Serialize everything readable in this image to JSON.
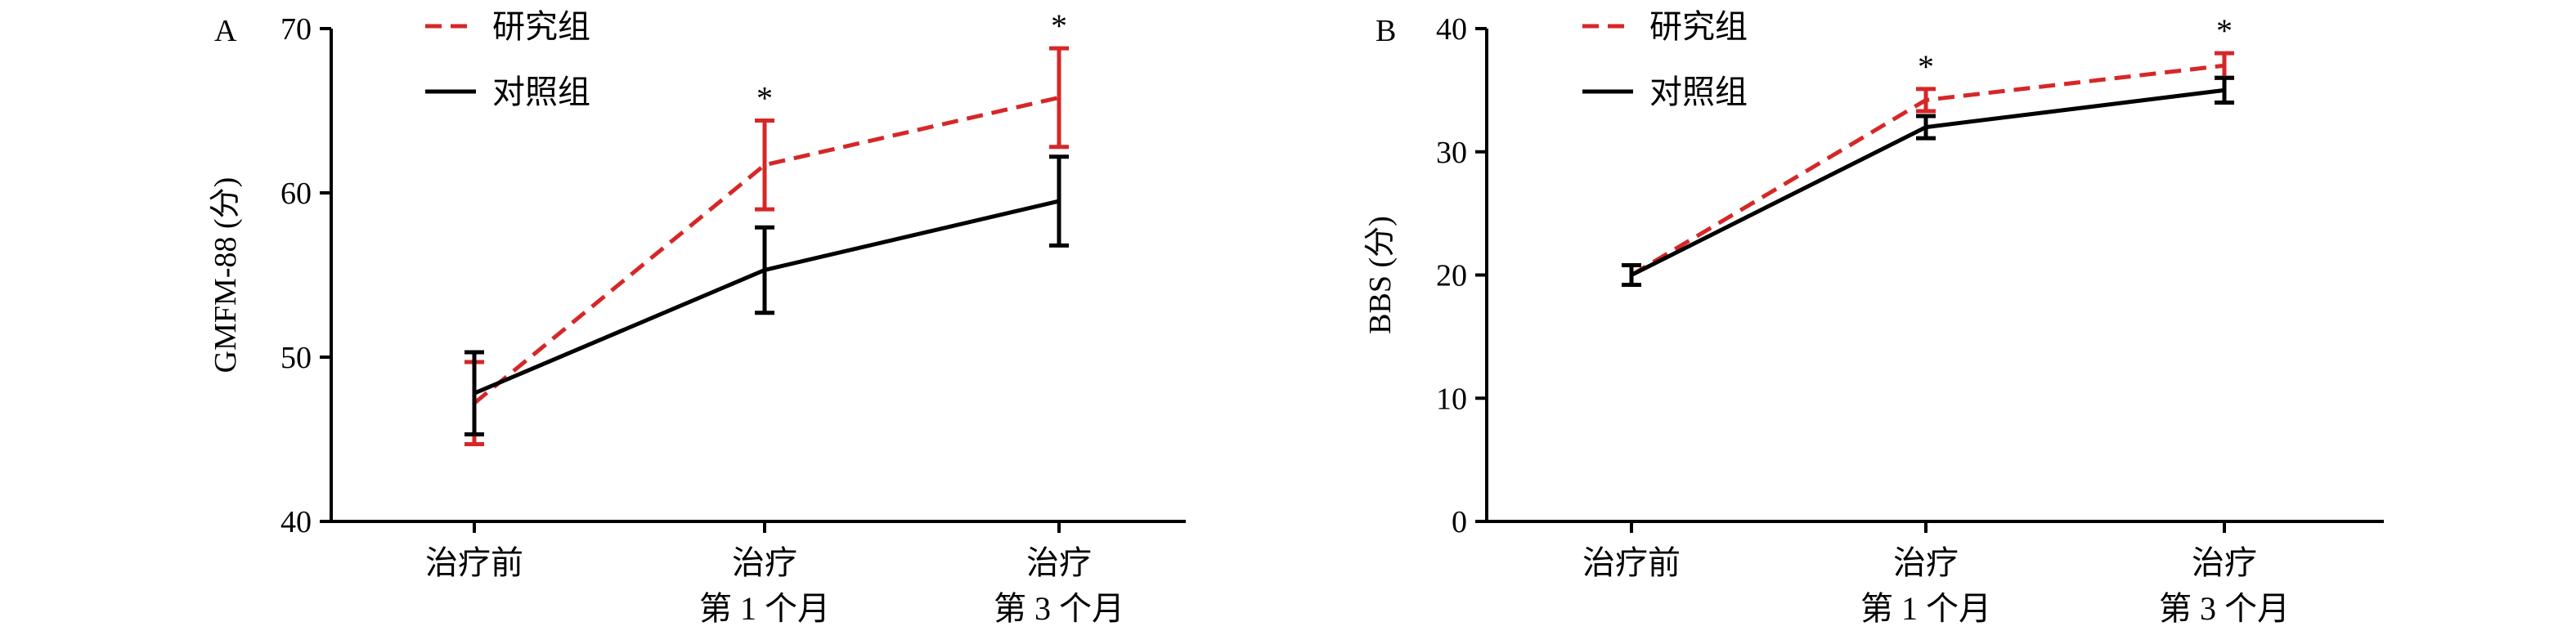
{
  "chart_data": [
    {
      "type": "line",
      "panel_label": "A",
      "categories": [
        [
          "治疗前"
        ],
        [
          "治疗",
          "第 1 个月"
        ],
        [
          "治疗",
          "第 3 个月"
        ]
      ],
      "ylabel": "GMFM-88 (分)",
      "ylim": [
        40,
        70
      ],
      "yticks": [
        40,
        50,
        60,
        70
      ],
      "grid": false,
      "legend_position": "top-left",
      "series": [
        {
          "name": "研究组",
          "color": "#d62728",
          "dash": "dashed",
          "values": [
            47.2,
            61.7,
            65.8
          ],
          "errors": [
            2.5,
            2.7,
            3.0
          ]
        },
        {
          "name": "对照组",
          "color": "#000000",
          "dash": "solid",
          "values": [
            47.8,
            55.3,
            59.5
          ],
          "errors": [
            2.5,
            2.6,
            2.7
          ]
        }
      ],
      "annotations": [
        {
          "category_index": 1,
          "text": "*"
        },
        {
          "category_index": 2,
          "text": "*"
        }
      ]
    },
    {
      "type": "line",
      "panel_label": "B",
      "categories": [
        [
          "治疗前"
        ],
        [
          "治疗",
          "第 1 个月"
        ],
        [
          "治疗",
          "第 3 个月"
        ]
      ],
      "ylabel": "BBS (分)",
      "ylim": [
        0,
        40
      ],
      "yticks": [
        0,
        10,
        20,
        30,
        40
      ],
      "grid": false,
      "legend_position": "top-left",
      "series": [
        {
          "name": "研究组",
          "color": "#d62728",
          "dash": "dashed",
          "values": [
            20.0,
            34.2,
            37.0
          ],
          "errors": [
            0.8,
            0.9,
            1.0
          ]
        },
        {
          "name": "对照组",
          "color": "#000000",
          "dash": "solid",
          "values": [
            20.0,
            32.0,
            35.0
          ],
          "errors": [
            0.8,
            0.9,
            1.0
          ]
        }
      ],
      "annotations": [
        {
          "category_index": 1,
          "text": "*"
        },
        {
          "category_index": 2,
          "text": "*"
        }
      ]
    }
  ]
}
